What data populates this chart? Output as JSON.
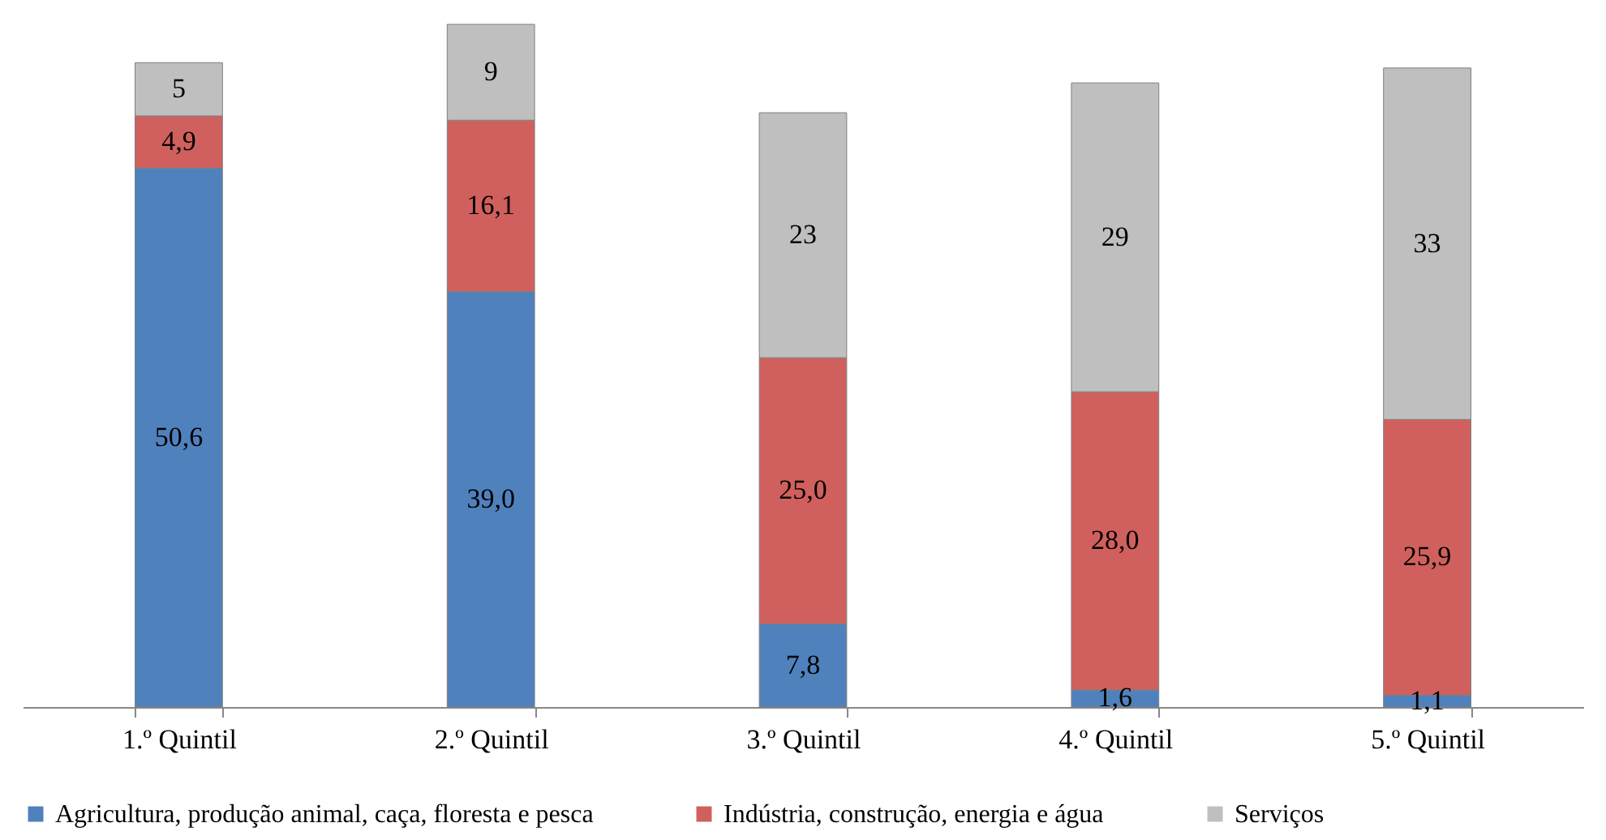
{
  "chart_data": {
    "type": "bar",
    "stacked": true,
    "categories": [
      "1.º Quintil",
      "2.º Quintil",
      "3.º Quintil",
      "4.º Quintil",
      "5.º Quintil"
    ],
    "series": [
      {
        "name": "Agricultura, produção animal, caça, floresta e pesca",
        "color": "#4f81bd",
        "values": [
          50.6,
          39.0,
          7.8,
          1.6,
          1.1
        ],
        "value_labels": [
          "50,6",
          "39,0",
          "7,8",
          "1,6",
          "1,1"
        ]
      },
      {
        "name": "Indústria, construção, energia e água",
        "color": "#d0605d",
        "values": [
          4.9,
          16.1,
          25.0,
          28.0,
          25.9
        ],
        "value_labels": [
          "4,9",
          "16,1",
          "25,0",
          "28,0",
          "25,9"
        ]
      },
      {
        "name": "Serviços",
        "color": "#bfbfbf",
        "values": [
          5,
          9,
          23,
          29,
          33
        ],
        "value_labels": [
          "5",
          "9",
          "23",
          "29",
          "33"
        ]
      }
    ],
    "legend": "bottom"
  }
}
